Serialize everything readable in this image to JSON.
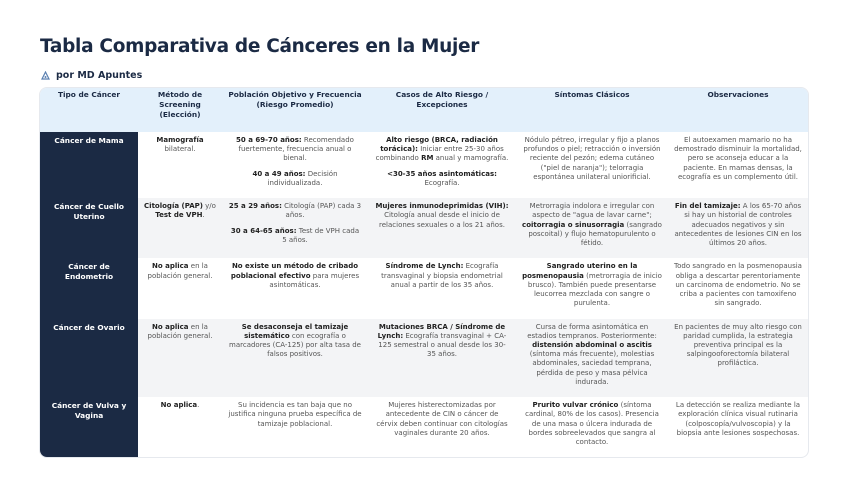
{
  "header": {
    "title": "Tabla Comparativa de Cánceres en la Mujer",
    "byline": "por MD Apuntes"
  },
  "table": {
    "columns": [
      "Tipo de Cáncer",
      "Método de Screening (Elección)",
      "Población Objetivo y Frecuencia (Riesgo Promedio)",
      "Casos de Alto Riesgo / Excepciones",
      "Síntomas Clásicos",
      "Observaciones"
    ],
    "rows": [
      {
        "type": "Cáncer de Mama",
        "cells": [
          [
            [
              "Mamografía",
              " bilateral."
            ]
          ],
          [
            [
              "50 a 69-70 años:",
              " Recomendado fuertemente, frecuencia anual o bienal."
            ],
            [
              "40 a 49 años:",
              " Decisión individualizada."
            ]
          ],
          [
            [
              "Alto riesgo (BRCA, radiación torácica):",
              " Iniciar entre 25-30 años combinando ",
              "RM",
              " anual y mamografía."
            ],
            [
              "<30-35 años asintomáticas:",
              " Ecografía."
            ]
          ],
          [
            [
              "Nódulo pétreo, irregular y fijo a planos profundos o piel; retracción o inversión reciente del pezón; edema cutáneo (\"piel de naranja\"); telorragia espontánea unilateral uniorificial."
            ]
          ],
          [
            [
              "El autoexamen mamario no ha demostrado disminuir la mortalidad, pero se aconseja educar a la paciente. En mamas densas, la ecografía es un complemento útil."
            ]
          ]
        ]
      },
      {
        "type": "Cáncer de Cuello Uterino",
        "cells": [
          [
            [
              "Citología (PAP)",
              " y/o ",
              "Test de VPH",
              "."
            ]
          ],
          [
            [
              "25 a 29 años:",
              " Citología (PAP) cada 3 años."
            ],
            [
              "30 a 64-65 años:",
              " Test de VPH cada 5 años."
            ]
          ],
          [
            [
              "Mujeres inmunodeprimidas (VIH):",
              " Citología anual desde el inicio de relaciones sexuales o a los 21 años."
            ]
          ],
          [
            [
              "Metrorragia indolora e irregular con aspecto de \"agua de lavar carne\"; ",
              "coitorragia o sinusorragia",
              " (sangrado poscoital) y flujo hematopurulento o fétido."
            ]
          ],
          [
            [
              "Fin del tamizaje:",
              " A los 65-70 años si hay un historial de controles adecuados negativos y sin antecedentes de lesiones CIN en los últimos 20 años."
            ]
          ]
        ]
      },
      {
        "type": "Cáncer de Endometrio",
        "cells": [
          [
            [
              "No aplica",
              " en la población general."
            ]
          ],
          [
            [
              "No existe un método de cribado poblacional efectivo",
              " para mujeres asintomáticas."
            ]
          ],
          [
            [
              "Síndrome de Lynch:",
              " Ecografía transvaginal y biopsia endometrial anual a partir de los 35 años."
            ]
          ],
          [
            [
              "Sangrado uterino en la posmenopausia",
              " (metrorragia de inicio brusco). También puede presentarse leucorrea mezclada con sangre o purulenta."
            ]
          ],
          [
            [
              "Todo sangrado en la posmenopausia obliga a descartar perentoriamente un carcinoma de endometrio. No se criba a pacientes con tamoxifeno sin sangrado."
            ]
          ]
        ]
      },
      {
        "type": "Cáncer de Ovario",
        "cells": [
          [
            [
              "No aplica",
              " en la población general."
            ]
          ],
          [
            [
              "Se desaconseja el tamizaje sistemático",
              " con ecografía o marcadores (CA-125) por alta tasa de falsos positivos."
            ]
          ],
          [
            [
              "Mutaciones BRCA / Síndrome de Lynch:",
              " Ecografía transvaginal + CA-125 semestral o anual desde los 30-35 años."
            ]
          ],
          [
            [
              "Cursa de forma asintomática en estadios tempranos. Posteriormente: ",
              "distensión abdominal o ascitis",
              " (síntoma más frecuente), molestias abdominales, saciedad temprana, pérdida de peso y masa pélvica indurada."
            ]
          ],
          [
            [
              "En pacientes de muy alto riesgo con paridad cumplida, la estrategia preventiva principal es la salpingooforectomía bilateral profiláctica."
            ]
          ]
        ]
      },
      {
        "type": "Cáncer de Vulva y Vagina",
        "cells": [
          [
            [
              "No aplica",
              "."
            ]
          ],
          [
            [
              "Su incidencia es tan baja que no justifica ninguna prueba específica de tamizaje poblacional."
            ]
          ],
          [
            [
              "Mujeres histerectomizadas por antecedente de CIN o cáncer de cérvix deben continuar con citologías vaginales durante 20 años."
            ]
          ],
          [
            [
              "Prurito vulvar crónico",
              " (síntoma cardinal, 80% de los casos). Presencia de una masa o úlcera indurada de bordes sobreelevados que sangra al contacto."
            ]
          ],
          [
            [
              "La detección se realiza mediante la exploración clínica visual rutinaria (colposcopía/vulvoscopia) y la biopsia ante lesiones sospechosas."
            ]
          ]
        ]
      }
    ]
  }
}
